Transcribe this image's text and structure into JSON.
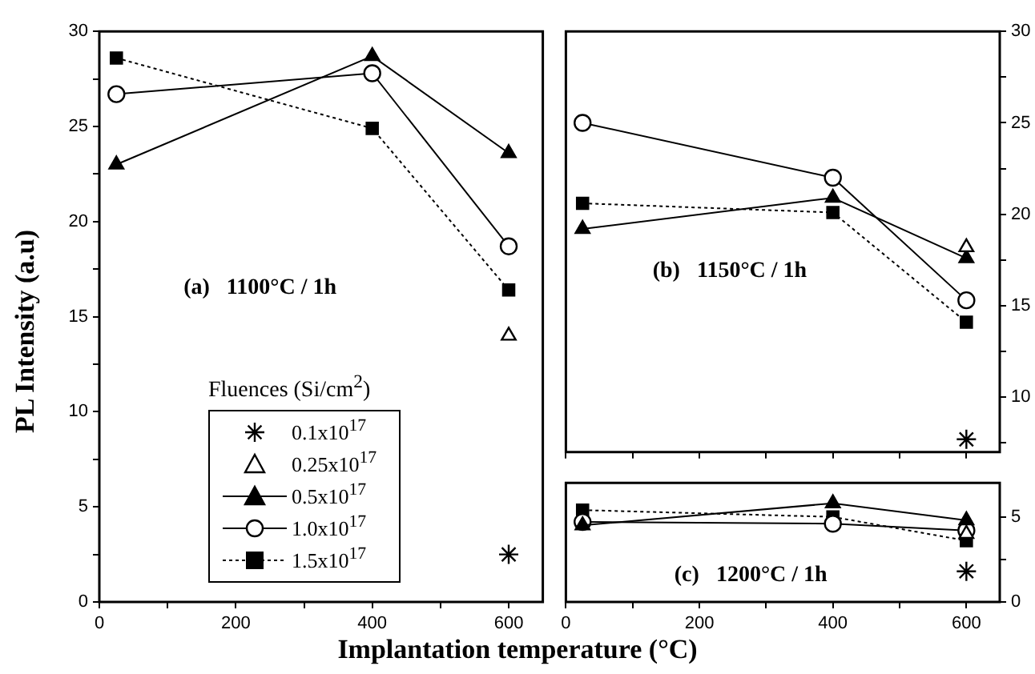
{
  "chart_data": [
    {
      "type": "line",
      "ylabel": "PL Intensity (a.u)",
      "xlabel": "Implantation temperature (°C)",
      "legend_title": "Fluences (Si/cm$^{2}$)",
      "legend": "bottom",
      "annotations": [
        "(a)   1100°C / 1h"
      ],
      "xlim": [
        0,
        650
      ],
      "xticks": [
        0,
        {
          "value": 100,
          "label": null
        },
        200,
        {
          "value": 300,
          "label": null
        },
        400,
        {
          "value": 500,
          "label": null
        },
        600
      ],
      "ylim": [
        0,
        30
      ],
      "yticks": [
        0,
        {
          "value": 2.5,
          "label": null
        },
        5,
        {
          "value": 7.5,
          "label": null
        },
        10,
        {
          "value": 12.5,
          "label": null
        },
        15,
        {
          "value": 17.5,
          "label": null
        },
        20,
        {
          "value": 22.5,
          "label": null
        },
        25,
        {
          "value": 27.5,
          "label": null
        },
        30
      ],
      "x": [
        25,
        400,
        600
      ],
      "series": [
        {
          "name": "0.1x10$^{17}$",
          "type": "scatter",
          "marker": "cross",
          "color": "#000000",
          "values": [
            null,
            null,
            2.5
          ]
        },
        {
          "name": "0.25x10$^{17}$",
          "type": "scatter",
          "marker": "triangle",
          "color": "#ffffff",
          "values": [
            null,
            null,
            14.0
          ]
        },
        {
          "name": "0.5x10$^{17}$",
          "type": "line",
          "marker": "triangle",
          "line_style": "solid",
          "color": "#000000",
          "values": [
            23.0,
            28.7,
            23.6
          ]
        },
        {
          "name": "1.0x10$^{17}$",
          "type": "line",
          "marker": "circle",
          "line_style": "solid",
          "color": "#ffffff",
          "values": [
            26.7,
            27.8,
            18.7
          ]
        },
        {
          "name": "1.5x10$^{17}$",
          "type": "line",
          "marker": "square",
          "line_style": "dotted",
          "color": "#000000",
          "values": [
            28.6,
            24.9,
            16.4
          ]
        }
      ]
    },
    {
      "type": "line",
      "annotations": [
        "(b)   1150°C / 1h"
      ],
      "tick_labels": "y",
      "xlim": [
        0,
        650
      ],
      "xticks": [
        0,
        {
          "value": 100,
          "label": null
        },
        200,
        {
          "value": 300,
          "label": null
        },
        400,
        {
          "value": 500,
          "label": null
        },
        600
      ],
      "ylim": [
        7,
        30
      ],
      "yticks": [
        {
          "value": 7.5,
          "label": null
        },
        10,
        {
          "value": 12.5,
          "label": null
        },
        15,
        {
          "value": 17.5,
          "label": null
        },
        20,
        {
          "value": 22.5,
          "label": null
        },
        25,
        {
          "value": 27.5,
          "label": null
        },
        30
      ],
      "x": [
        25,
        400,
        600
      ],
      "series": [
        {
          "type": "scatter",
          "marker": "cross",
          "color": "#000000",
          "values": [
            null,
            null,
            7.7
          ]
        },
        {
          "type": "scatter",
          "marker": "triangle",
          "color": "#ffffff",
          "values": [
            null,
            null,
            18.2
          ]
        },
        {
          "type": "line",
          "marker": "triangle",
          "line_style": "solid",
          "color": "#000000",
          "values": [
            19.2,
            20.9,
            17.6
          ]
        },
        {
          "type": "line",
          "marker": "circle",
          "line_style": "solid",
          "color": "#ffffff",
          "values": [
            25.0,
            22.0,
            15.3
          ]
        },
        {
          "type": "line",
          "marker": "square",
          "line_style": "dotted",
          "color": "#000000",
          "values": [
            20.6,
            20.1,
            14.1
          ]
        }
      ]
    },
    {
      "type": "line",
      "annotations": [
        "(c)   1200°C / 1h"
      ],
      "xlim": [
        0,
        650
      ],
      "xticks": [
        0,
        {
          "value": 100,
          "label": null
        },
        200,
        {
          "value": 300,
          "label": null
        },
        400,
        {
          "value": 500,
          "label": null
        },
        600
      ],
      "ylim": [
        0,
        7
      ],
      "yticks": [
        0,
        {
          "value": 2.5,
          "label": null
        },
        5
      ],
      "x": [
        25,
        400,
        600
      ],
      "series": [
        {
          "type": "scatter",
          "marker": "cross",
          "color": "#000000",
          "values": [
            null,
            null,
            1.8
          ]
        },
        {
          "type": "scatter",
          "marker": "triangle",
          "color": "#ffffff",
          "values": [
            null,
            null,
            4.0
          ]
        },
        {
          "type": "line",
          "marker": "triangle",
          "line_style": "solid",
          "color": "#000000",
          "values": [
            4.5,
            5.8,
            4.8
          ]
        },
        {
          "type": "line",
          "marker": "circle",
          "line_style": "solid",
          "color": "#ffffff",
          "values": [
            4.7,
            4.6,
            4.2
          ]
        },
        {
          "type": "line",
          "marker": "square",
          "line_style": "dotted",
          "color": "#000000",
          "values": [
            5.4,
            5.0,
            3.6
          ]
        }
      ]
    }
  ]
}
